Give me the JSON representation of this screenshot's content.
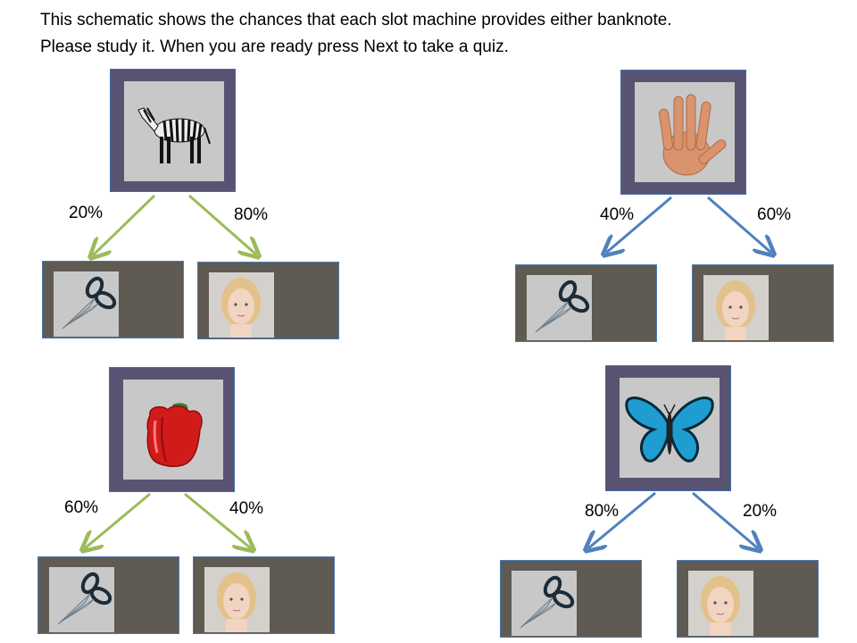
{
  "instructions": {
    "line1": "This schematic shows the chances that each slot machine provides either banknote.",
    "line2": "Please study it. When you are ready press Next to take a quiz."
  },
  "colors": {
    "green_arrow": "#9bbb59",
    "blue_arrow": "#4f81bd",
    "machine_frame": "#595373",
    "outcome_box": "#5f5a52"
  },
  "machines": [
    {
      "icon": "zebra-icon",
      "left_pct": "20%",
      "right_pct": "80%",
      "left_outcome": "scissors-icon",
      "right_outcome": "girl-face-icon"
    },
    {
      "icon": "hand-icon",
      "left_pct": "40%",
      "right_pct": "60%",
      "left_outcome": "scissors-icon",
      "right_outcome": "girl-face-icon"
    },
    {
      "icon": "red-pepper-icon",
      "left_pct": "60%",
      "right_pct": "40%",
      "left_outcome": "scissors-icon",
      "right_outcome": "girl-face-icon"
    },
    {
      "icon": "butterfly-icon",
      "left_pct": "80%",
      "right_pct": "20%",
      "left_outcome": "scissors-icon",
      "right_outcome": "girl-face-icon"
    }
  ]
}
